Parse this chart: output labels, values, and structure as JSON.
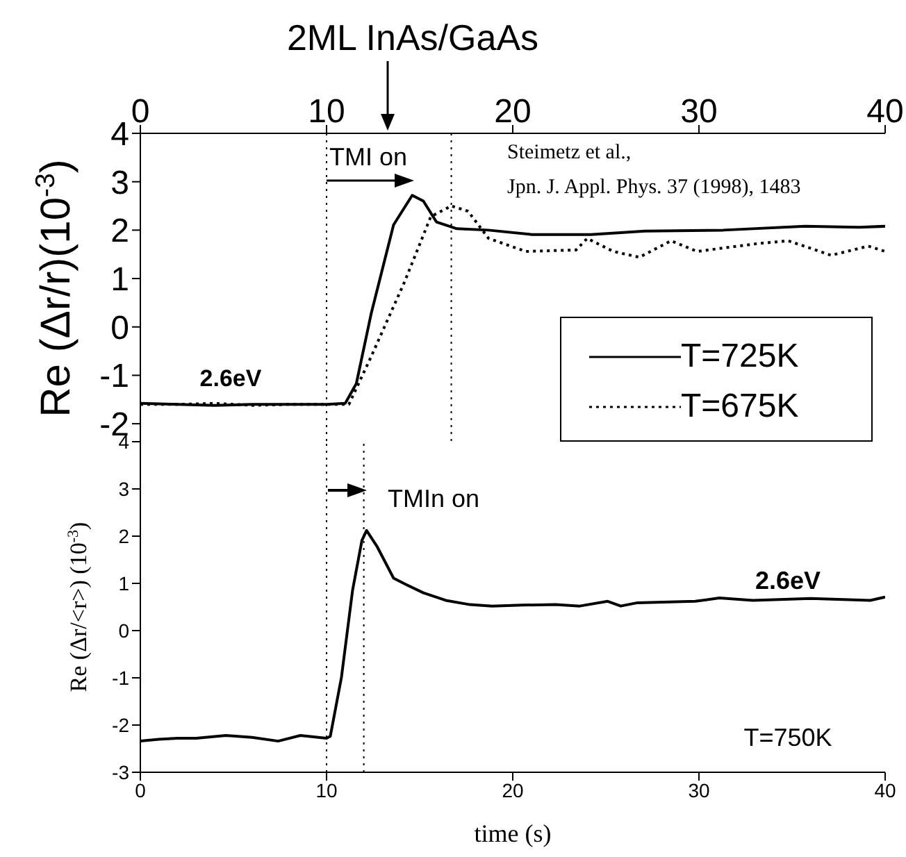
{
  "chart_data": [
    {
      "type": "line",
      "ylabel": "Re (Δr/r)(10$^{-3}$)",
      "xlim": [
        0,
        40
      ],
      "xticks": [
        0,
        10,
        20,
        30,
        40
      ],
      "ylim": [
        -2.4,
        4
      ],
      "yticks": [
        -2,
        -1,
        0,
        1,
        2,
        3,
        4
      ],
      "legend": "bottom right",
      "annotations": [
        "2ML InAs/GaAs",
        "TMI on",
        "Steimetz et al.,",
        "Jpn. J. Appl. Phys. 37 (1998), 1483",
        "2.6eV"
      ],
      "ref_lines": [
        {
          "axis": "x",
          "value": 10,
          "line_style": "dotted"
        },
        {
          "axis": "x",
          "value": 16.7,
          "line_style": "dotted"
        }
      ],
      "series": [
        {
          "name": "T=725K",
          "color": "#000000",
          "line_style": "solid",
          "x": [
            0,
            2,
            4,
            6,
            8,
            10,
            11,
            11.6,
            12.4,
            13.6,
            14.6,
            15.2,
            15.9,
            17,
            18.7,
            21,
            24.2,
            27.1,
            31.3,
            35.7,
            38.6,
            40
          ],
          "values": [
            -1.58,
            -1.6,
            -1.62,
            -1.6,
            -1.6,
            -1.6,
            -1.58,
            -1.17,
            0.28,
            2.11,
            2.72,
            2.6,
            2.17,
            2.03,
            2.0,
            1.91,
            1.91,
            1.98,
            2.0,
            2.08,
            2.06,
            2.08
          ]
        },
        {
          "name": "T=675K",
          "color": "#000000",
          "line_style": "dotted",
          "x": [
            0,
            2,
            4,
            6,
            8,
            10,
            11.2,
            12.4,
            14.2,
            15.6,
            16.7,
            17.6,
            18.7,
            20.7,
            23.4,
            24,
            25.4,
            26.8,
            28.5,
            29.9,
            33.1,
            34.8,
            37.1,
            39.1,
            40
          ],
          "values": [
            -1.6,
            -1.6,
            -1.58,
            -1.62,
            -1.6,
            -1.6,
            -1.6,
            -0.61,
            0.94,
            2.28,
            2.5,
            2.39,
            1.83,
            1.56,
            1.59,
            1.83,
            1.56,
            1.44,
            1.78,
            1.56,
            1.72,
            1.78,
            1.48,
            1.67,
            1.56
          ]
        }
      ]
    },
    {
      "type": "line",
      "xlabel": "time (s)",
      "ylabel": "Re (Δr/<r>) (10$^{-3}$)",
      "xlim": [
        0,
        40
      ],
      "xticks": [
        0,
        10,
        20,
        30,
        40
      ],
      "ylim": [
        -3,
        4
      ],
      "yticks": [
        -3,
        -2,
        -1,
        0,
        1,
        2,
        3,
        4
      ],
      "annotations": [
        "TMIn on",
        "2.6eV",
        "T=750K"
      ],
      "ref_lines": [
        {
          "axis": "x",
          "value": 10,
          "line_style": "dotted"
        },
        {
          "axis": "x",
          "value": 12,
          "line_style": "dotted"
        }
      ],
      "series": [
        {
          "color": "#000000",
          "line_style": "solid",
          "x": [
            0,
            1,
            2,
            3,
            4.6,
            6,
            7.4,
            8.6,
            10,
            10.2,
            10.8,
            11.4,
            11.9,
            12.15,
            12.7,
            13.6,
            14.2,
            15.2,
            16.4,
            17.7,
            18.9,
            20.5,
            22.3,
            23.6,
            25.1,
            25.8,
            26.7,
            29.8,
            31.1,
            32.9,
            36,
            39.2,
            40
          ],
          "values": [
            -2.34,
            -2.3,
            -2.28,
            -2.28,
            -2.22,
            -2.26,
            -2.34,
            -2.22,
            -2.28,
            -2.24,
            -0.99,
            0.86,
            1.91,
            2.12,
            1.79,
            1.11,
            0.99,
            0.8,
            0.64,
            0.55,
            0.52,
            0.54,
            0.55,
            0.52,
            0.62,
            0.52,
            0.59,
            0.62,
            0.69,
            0.64,
            0.68,
            0.64,
            0.71
          ]
        }
      ]
    }
  ]
}
